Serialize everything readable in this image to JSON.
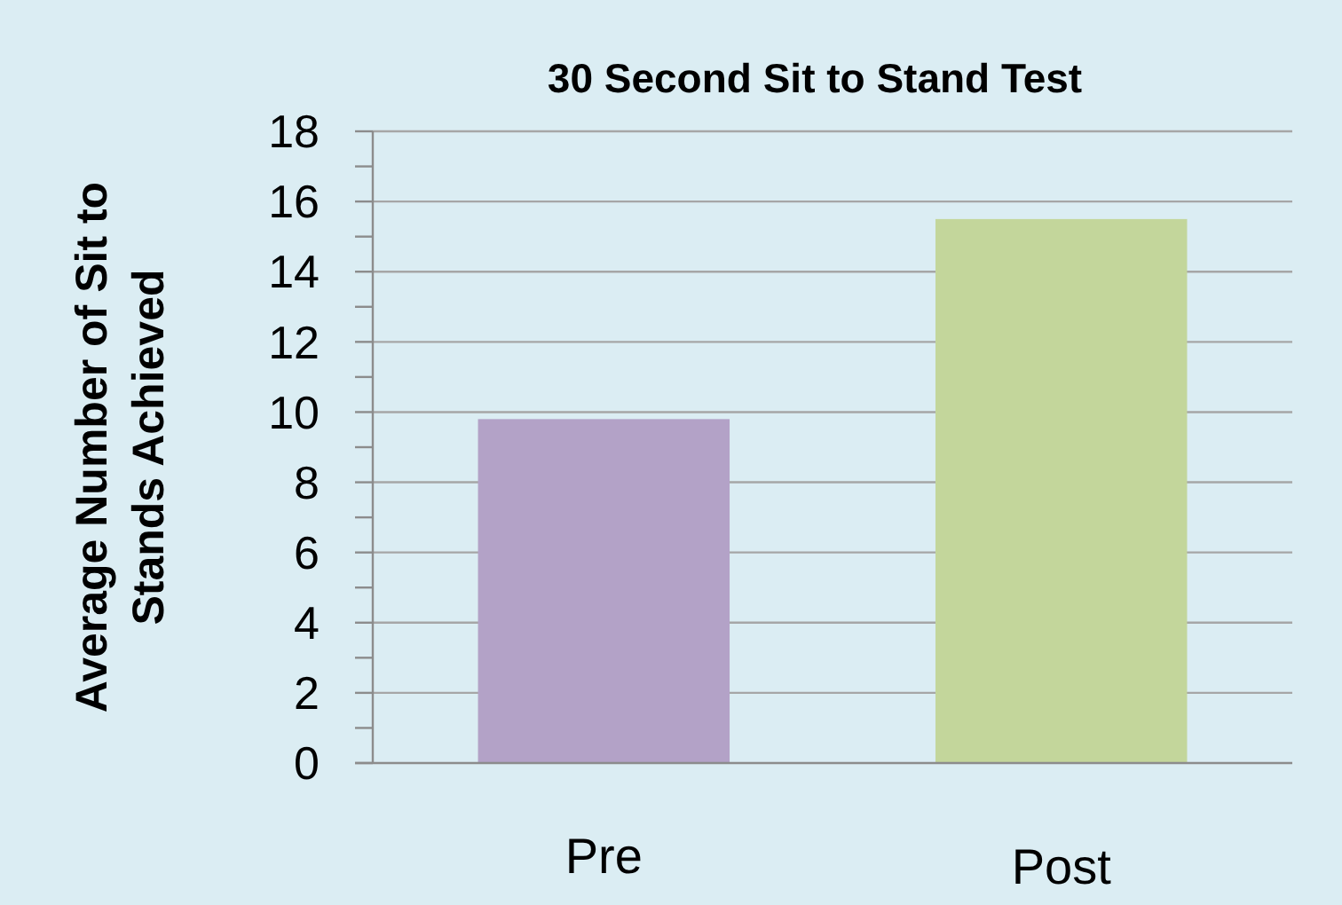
{
  "chart_data": {
    "type": "bar",
    "title": "30 Second Sit to Stand Test",
    "ylabel": "Average Number of Sit to Stands Achieved",
    "categories": [
      "Pre",
      "Post"
    ],
    "values": [
      9.8,
      15.5
    ],
    "colors": [
      "#b3a2c7",
      "#c3d69b"
    ],
    "ylim": [
      0,
      18
    ],
    "yticks": [
      0,
      {
        "value": 1,
        "label": null
      },
      2,
      {
        "value": 3,
        "label": null
      },
      4,
      {
        "value": 5,
        "label": null
      },
      6,
      {
        "value": 7,
        "label": null
      },
      8,
      {
        "value": 9,
        "label": null
      },
      10,
      {
        "value": 11,
        "label": null
      },
      12,
      {
        "value": 13,
        "label": null
      },
      14,
      {
        "value": 15,
        "label": null
      },
      16,
      {
        "value": 17,
        "label": null
      },
      18
    ],
    "grid": "y"
  }
}
